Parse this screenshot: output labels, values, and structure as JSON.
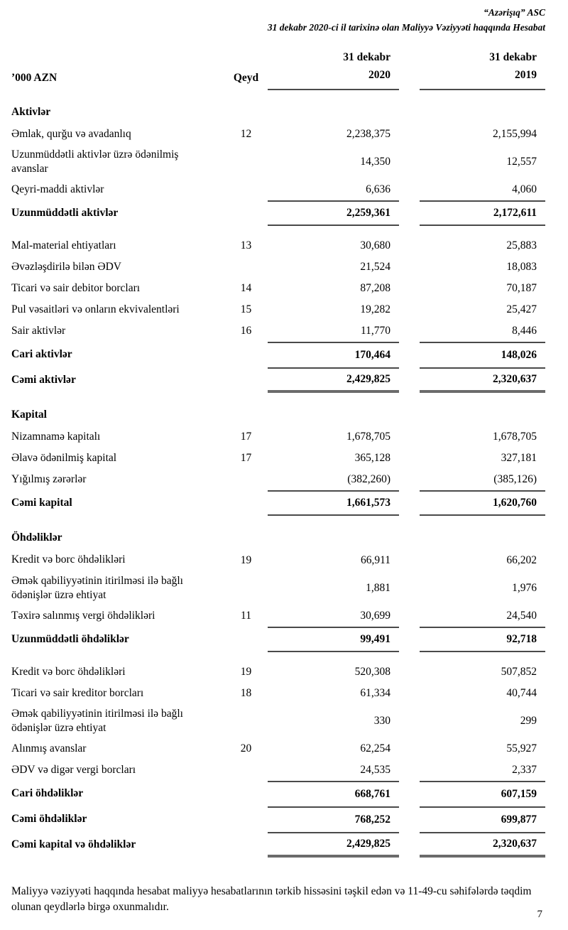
{
  "doc": {
    "header_line1": "“Azərişıq” ASC",
    "header_line2": "31 dekabr 2020-ci il tarixinə olan Maliyyə Vəziyyəti haqqında Hesabat",
    "footer_note": "Maliyyə vəziyyəti haqqında hesabat maliyyə hesabatlarının tərkib hissəsini təşkil edən və 11-49-cu səhifələrdə təqdim olunan qeydlərlə birgə oxunmalıdır.",
    "page_number": "7"
  },
  "colors": {
    "rule_thin": "#4a4a4a",
    "rule_thick": "#6b6b6b",
    "text": "#000000",
    "background": "#ffffff"
  },
  "table": {
    "columns": {
      "unit_label": "’000 AZN",
      "note_label": "Qeyd",
      "col_2020_line1": "31 dekabr",
      "col_2020_line2": "2020",
      "col_2019_line1": "31 dekabr",
      "col_2019_line2": "2019"
    },
    "rows": [
      {
        "type": "section",
        "label": "Aktivlər",
        "note": "",
        "v2020": "",
        "v2019": ""
      },
      {
        "type": "item",
        "label": "Əmlak, qurğu və avadanlıq",
        "note": "12",
        "v2020": "2,238,375",
        "v2019": "2,155,994"
      },
      {
        "type": "item",
        "label": "Uzunmüddətli aktivlər üzrə ödənilmiş avanslar",
        "note": "",
        "v2020": "14,350",
        "v2019": "12,557"
      },
      {
        "type": "item",
        "label": "Qeyri-maddi aktivlər",
        "note": "",
        "v2020": "6,636",
        "v2019": "4,060"
      },
      {
        "type": "total",
        "label": "Uzunmüddətli aktivlər",
        "note": "",
        "v2020": "2,259,361",
        "v2019": "2,172,611",
        "rule_above": true,
        "rule_below": "thin",
        "gap_after": true
      },
      {
        "type": "item",
        "label": "Mal-material ehtiyatları",
        "note": "13",
        "v2020": "30,680",
        "v2019": "25,883"
      },
      {
        "type": "item",
        "label": "Əvəzləşdirilə bilən ƏDV",
        "note": "",
        "v2020": "21,524",
        "v2019": "18,083"
      },
      {
        "type": "item",
        "label": "Ticari və sair debitor borcları",
        "note": "14",
        "v2020": "87,208",
        "v2019": "70,187"
      },
      {
        "type": "item",
        "label": "Pul vəsaitləri və onların ekvivalentləri",
        "note": "15",
        "v2020": "19,282",
        "v2019": "25,427"
      },
      {
        "type": "item",
        "label": "Sair aktivlər",
        "note": "16",
        "v2020": "11,770",
        "v2019": "8,446"
      },
      {
        "type": "total",
        "label": "Cari aktivlər",
        "note": "",
        "v2020": "170,464",
        "v2019": "148,026",
        "rule_above": true
      },
      {
        "type": "total",
        "label": "Cəmi aktivlər",
        "note": "",
        "v2020": "2,429,825",
        "v2019": "2,320,637",
        "rule_above": true,
        "rule_below": "thick"
      },
      {
        "type": "section",
        "label": "Kapital",
        "note": "",
        "v2020": "",
        "v2019": ""
      },
      {
        "type": "item",
        "label": "Nizamnamə kapitalı",
        "note": "17",
        "v2020": "1,678,705",
        "v2019": "1,678,705"
      },
      {
        "type": "item",
        "label": "Əlavə ödənilmiş kapital",
        "note": "17",
        "v2020": "365,128",
        "v2019": "327,181"
      },
      {
        "type": "item",
        "label": "Yığılmış zərərlər",
        "note": "",
        "v2020": "(382,260)",
        "v2019": "(385,126)"
      },
      {
        "type": "total",
        "label": "Cəmi kapital",
        "note": "",
        "v2020": "1,661,573",
        "v2019": "1,620,760",
        "rule_above": true,
        "rule_below": "thin"
      },
      {
        "type": "section",
        "label": "Öhdəliklər",
        "note": "",
        "v2020": "",
        "v2019": ""
      },
      {
        "type": "item",
        "label": "Kredit və borc öhdəlikləri",
        "note": "19",
        "v2020": "66,911",
        "v2019": "66,202"
      },
      {
        "type": "item",
        "label": "Əmək qabiliyyətinin itirilməsi ilə bağlı ödənişlər üzrə ehtiyat",
        "note": "",
        "v2020": "1,881",
        "v2019": "1,976"
      },
      {
        "type": "item",
        "label": "Təxirə salınmış vergi öhdəlikləri",
        "note": "11",
        "v2020": "30,699",
        "v2019": "24,540"
      },
      {
        "type": "total",
        "label": "Uzunmüddətli öhdəliklər",
        "note": "",
        "v2020": "99,491",
        "v2019": "92,718",
        "rule_above": true,
        "rule_below": "thin",
        "gap_after": true
      },
      {
        "type": "item",
        "label": "Kredit və borc öhdəlikləri",
        "note": "19",
        "v2020": "520,308",
        "v2019": "507,852"
      },
      {
        "type": "item",
        "label": "Ticari və sair kreditor borcları",
        "note": "18",
        "v2020": "61,334",
        "v2019": "40,744"
      },
      {
        "type": "item",
        "label": "Əmək qabiliyyətinin itirilməsi ilə bağlı ödənişlər üzrə ehtiyat",
        "note": "",
        "v2020": "330",
        "v2019": "299"
      },
      {
        "type": "item",
        "label": "Alınmış avanslar",
        "note": "20",
        "v2020": "62,254",
        "v2019": "55,927"
      },
      {
        "type": "item",
        "label": "ƏDV və digər vergi borcları",
        "note": "",
        "v2020": "24,535",
        "v2019": "2,337"
      },
      {
        "type": "total",
        "label": "Cari öhdəliklər",
        "note": "",
        "v2020": "668,761",
        "v2019": "607,159",
        "rule_above": true
      },
      {
        "type": "total",
        "label": "Cəmi öhdəliklər",
        "note": "",
        "v2020": "768,252",
        "v2019": "699,877",
        "rule_above": true
      },
      {
        "type": "grand",
        "label": "Cəmi kapital və öhdəliklər",
        "note": "",
        "v2020": "2,429,825",
        "v2019": "2,320,637",
        "rule_above": true,
        "rule_below": "thick"
      }
    ]
  }
}
